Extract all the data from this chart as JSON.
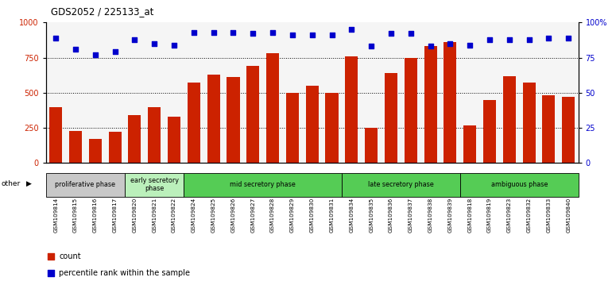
{
  "title": "GDS2052 / 225133_at",
  "samples": [
    "GSM109814",
    "GSM109815",
    "GSM109816",
    "GSM109817",
    "GSM109820",
    "GSM109821",
    "GSM109822",
    "GSM109824",
    "GSM109825",
    "GSM109826",
    "GSM109827",
    "GSM109828",
    "GSM109829",
    "GSM109830",
    "GSM109831",
    "GSM109834",
    "GSM109835",
    "GSM109836",
    "GSM109837",
    "GSM109838",
    "GSM109839",
    "GSM109818",
    "GSM109819",
    "GSM109823",
    "GSM109832",
    "GSM109833",
    "GSM109840"
  ],
  "counts": [
    400,
    230,
    170,
    220,
    340,
    395,
    330,
    570,
    630,
    610,
    690,
    780,
    500,
    550,
    500,
    760,
    250,
    640,
    750,
    830,
    860,
    265,
    450,
    615,
    575,
    480,
    470
  ],
  "percentiles": [
    89,
    81,
    77,
    79,
    88,
    85,
    84,
    93,
    93,
    93,
    92,
    93,
    91,
    91,
    91,
    95,
    83,
    92,
    92,
    83,
    85,
    84,
    88,
    88,
    88,
    89,
    89
  ],
  "bar_color": "#cc2200",
  "dot_color": "#0000cc",
  "ylim_left": [
    0,
    1000
  ],
  "ylim_right": [
    0,
    100
  ],
  "yticks_left": [
    0,
    250,
    500,
    750,
    1000
  ],
  "yticks_right": [
    0,
    25,
    50,
    75,
    100
  ],
  "ytick_labels_right": [
    "0",
    "25",
    "50",
    "75",
    "100%"
  ],
  "phases": [
    {
      "label": "proliferative phase",
      "start": 0,
      "end": 4,
      "color": "#c8c8c8"
    },
    {
      "label": "early secretory\nphase",
      "start": 4,
      "end": 7,
      "color": "#bbf0bb"
    },
    {
      "label": "mid secretory phase",
      "start": 7,
      "end": 15,
      "color": "#55cc55"
    },
    {
      "label": "late secretory phase",
      "start": 15,
      "end": 21,
      "color": "#55cc55"
    },
    {
      "label": "ambiguous phase",
      "start": 21,
      "end": 27,
      "color": "#55cc55"
    }
  ],
  "chart_bg": "#f5f5f5",
  "other_label": "other"
}
